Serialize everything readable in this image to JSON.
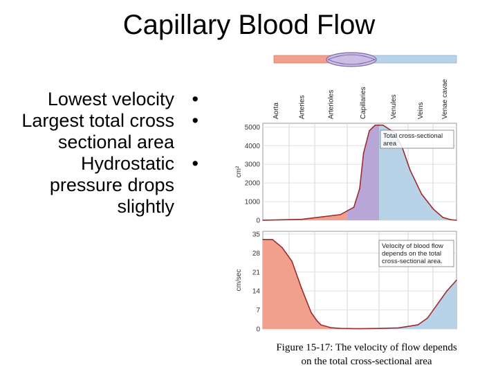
{
  "title": "Capillary Blood Flow",
  "bullets": [
    {
      "text": "Lowest velocity"
    },
    {
      "text": "Largest total cross sectional area"
    },
    {
      "text": "Hydrostatic pressure drops slightly"
    }
  ],
  "bullet_symbol": "•",
  "caption_line1": "Figure 15-17:  The velocity of flow depends",
  "caption_line2": "on the total cross-sectional area",
  "vessel_labels": [
    "Aorta",
    "Arteries",
    "Arterioles",
    "Capillaries",
    "Venules",
    "Veins",
    "Venae cavae"
  ],
  "colors": {
    "arterial": "#f2a08e",
    "capillary": "#b7a6d6",
    "venous": "#b8d3e8",
    "curve": "#9c2b2b"
  },
  "chart_data": [
    {
      "type": "area",
      "ylabel": "cm²",
      "yticks": [
        "0",
        "1000",
        "2000",
        "3000",
        "4000",
        "5000"
      ],
      "ylim": [
        0,
        5200
      ],
      "annotation": [
        "Total cross-sectional",
        "area"
      ],
      "x": [
        0,
        0.2,
        0.4,
        0.47,
        0.5,
        0.52,
        0.55,
        0.58,
        0.62,
        0.68,
        0.72,
        0.76,
        0.82,
        0.88,
        0.93,
        0.97,
        1.0
      ],
      "values": [
        0,
        50,
        300,
        700,
        1700,
        3600,
        4800,
        5100,
        5100,
        4700,
        3900,
        2700,
        1400,
        600,
        150,
        30,
        0
      ]
    },
    {
      "type": "area",
      "ylabel": "cm/sec",
      "yticks": [
        "0",
        "7",
        "14",
        "21",
        "28",
        "35"
      ],
      "ylim": [
        0,
        36
      ],
      "annotation": [
        "Velocity of blood flow",
        "depends on the total",
        "cross-sectional area."
      ],
      "x": [
        0,
        0.05,
        0.1,
        0.15,
        0.2,
        0.25,
        0.28,
        0.3,
        0.35,
        0.4,
        0.5,
        0.6,
        0.7,
        0.8,
        0.85,
        0.9,
        0.95,
        1.0
      ],
      "values": [
        33,
        33,
        30,
        25,
        15,
        6,
        3,
        1.5,
        0.5,
        0.2,
        0.1,
        0.2,
        0.4,
        1.5,
        4,
        9,
        14,
        18
      ]
    }
  ]
}
